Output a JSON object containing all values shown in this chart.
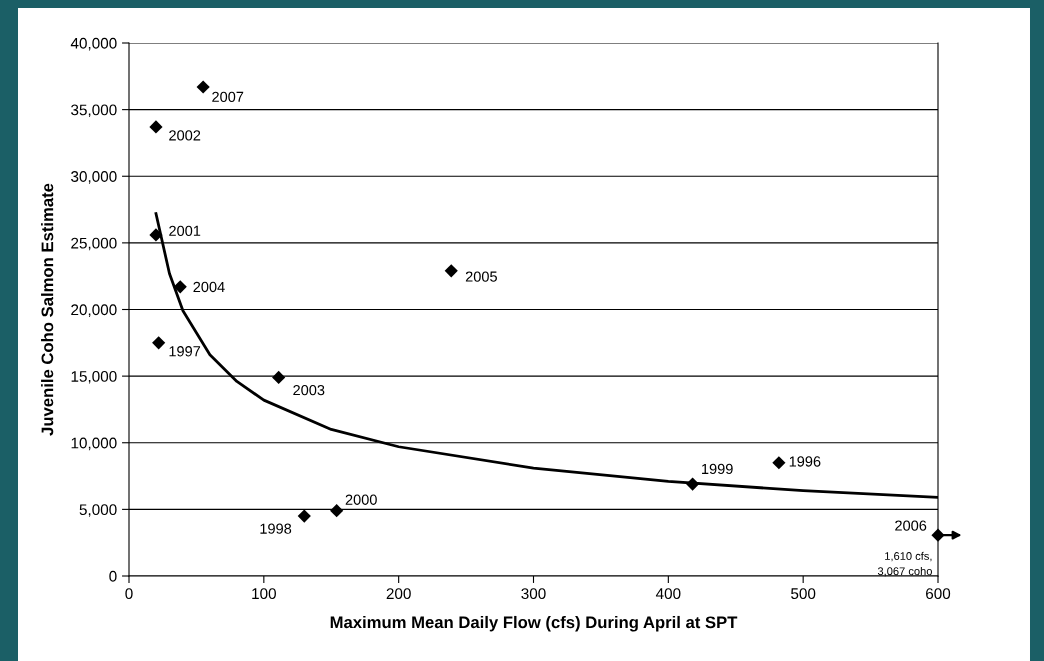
{
  "chart_data": {
    "type": "scatter",
    "xlabel": "Maximum Mean Daily Flow (cfs) During April at SPT",
    "ylabel": "Juvenile Coho Salmon Estimate",
    "xlim": [
      0,
      600
    ],
    "xticks": [
      0,
      100,
      200,
      300,
      400,
      500,
      600
    ],
    "ylim": [
      0,
      40000
    ],
    "yticks": [
      {
        "value": 0,
        "label": "0"
      },
      {
        "value": 5000,
        "label": "5,000"
      },
      {
        "value": 10000,
        "label": "10,000"
      },
      {
        "value": 15000,
        "label": "15,000"
      },
      {
        "value": 20000,
        "label": "20,000"
      },
      {
        "value": 25000,
        "label": "25,000"
      },
      {
        "value": 30000,
        "label": "30,000"
      },
      {
        "value": 35000,
        "label": "35,000"
      },
      {
        "value": 40000,
        "label": "40,000"
      }
    ],
    "grid": "y",
    "marker": "diamond",
    "series": [
      {
        "color": "#000000",
        "x": [
          55,
          20,
          20,
          38,
          22,
          111,
          239,
          130,
          154,
          418,
          482,
          600
        ],
        "values": [
          36700,
          33700,
          25600,
          21700,
          17500,
          14900,
          22900,
          4500,
          4900,
          6900,
          8500,
          3067
        ]
      },
      {
        "type": "line",
        "color": "#000000",
        "marker": "none",
        "x": [
          20,
          30,
          40,
          60,
          80,
          100,
          150,
          200,
          300,
          400,
          500,
          600
        ],
        "values": [
          27200,
          22700,
          19900,
          16600,
          14600,
          13200,
          11000,
          9700,
          8100,
          7100,
          6400,
          5900
        ]
      }
    ],
    "annotations": [
      {
        "text": "2007",
        "x": 55,
        "y": 36700
      },
      {
        "text": "2002",
        "x": 20,
        "y": 33700
      },
      {
        "text": "2001",
        "x": 20,
        "y": 25600
      },
      {
        "text": "2004",
        "x": 38,
        "y": 21700
      },
      {
        "text": "1997",
        "x": 22,
        "y": 17500
      },
      {
        "text": "2003",
        "x": 111,
        "y": 14900
      },
      {
        "text": "2005",
        "x": 239,
        "y": 22900
      },
      {
        "text": "1998",
        "x": 130,
        "y": 4500
      },
      {
        "text": "2000",
        "x": 154,
        "y": 4900
      },
      {
        "text": "1999",
        "x": 418,
        "y": 6900
      },
      {
        "text": "1996",
        "x": 482,
        "y": 8500
      },
      {
        "text": "2006",
        "x": 600,
        "y": 3067
      },
      {
        "text": "1,610 cfs,\n3,067 coho",
        "x": 600,
        "y": 3067
      }
    ]
  }
}
